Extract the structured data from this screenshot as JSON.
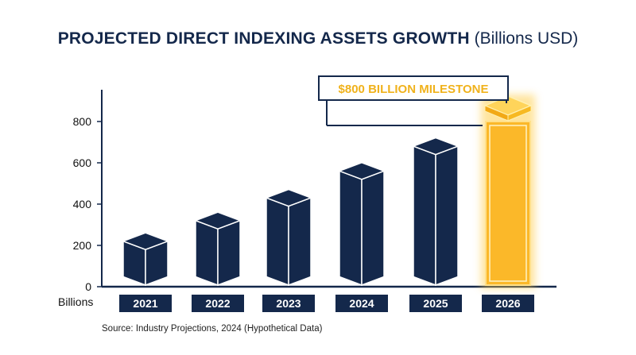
{
  "title": {
    "main": "PROJECTED DIRECT INDEXING ASSETS GROWTH",
    "unit": "(Billions USD)"
  },
  "source": "Source: Industry Projections, 2024 (Hypothetical Data)",
  "chart_data": {
    "type": "bar",
    "categories": [
      "2021",
      "2022",
      "2023",
      "2024",
      "2025",
      "2026"
    ],
    "values": [
      180,
      280,
      390,
      520,
      640,
      800
    ],
    "highlight_index": 5,
    "ylim": [
      0,
      900
    ],
    "yticks": [
      0,
      200,
      400,
      600,
      800
    ],
    "ylabel": "Billions",
    "grid": false,
    "annotation": {
      "text": "$800 BILLION MILESTONE",
      "target_index": 5
    },
    "colors": {
      "bar": "#14284b",
      "highlight": "#fbb829",
      "highlight_glow": "#ffcf4d",
      "axis": "#14284b",
      "annotation": "#f0b21c"
    }
  }
}
